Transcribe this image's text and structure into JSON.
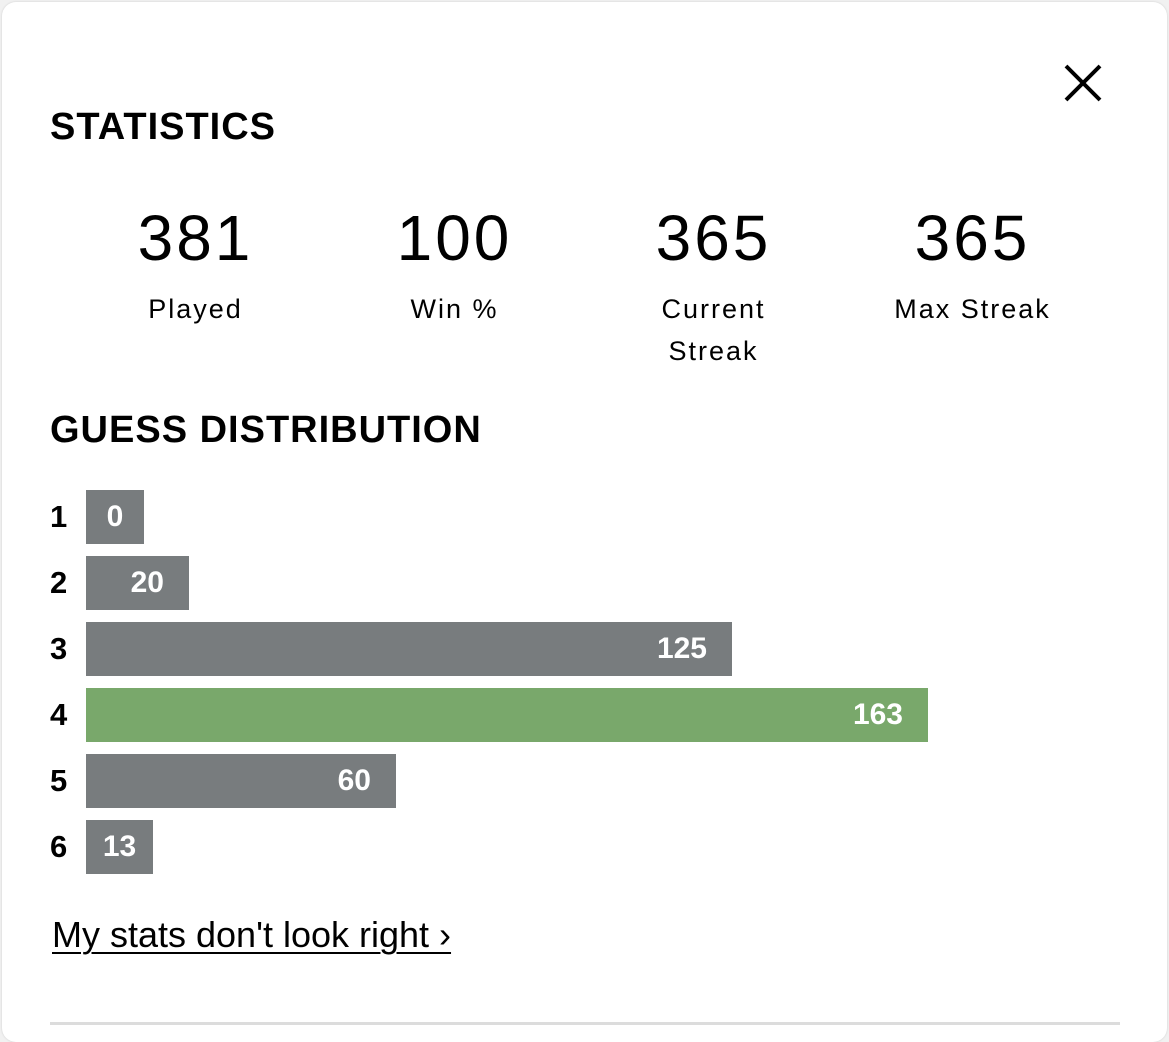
{
  "modal": {
    "title": "STATISTICS",
    "close_icon": "close-icon"
  },
  "stats": [
    {
      "value": "381",
      "label": "Played"
    },
    {
      "value": "100",
      "label": "Win %"
    },
    {
      "value": "365",
      "label": "Current Streak"
    },
    {
      "value": "365",
      "label": "Max Streak"
    }
  ],
  "distribution": {
    "title": "GUESS DISTRIBUTION",
    "max": 163,
    "highlight_index": 4,
    "rows": [
      {
        "guess": "1",
        "count": 0
      },
      {
        "guess": "2",
        "count": 20
      },
      {
        "guess": "3",
        "count": 125
      },
      {
        "guess": "4",
        "count": 163
      },
      {
        "guess": "5",
        "count": 60
      },
      {
        "guess": "6",
        "count": 13
      }
    ]
  },
  "colors": {
    "bar_default": "#787c7e",
    "bar_highlight": "#79a86b"
  },
  "link": {
    "text": "My stats don't look right ›"
  }
}
